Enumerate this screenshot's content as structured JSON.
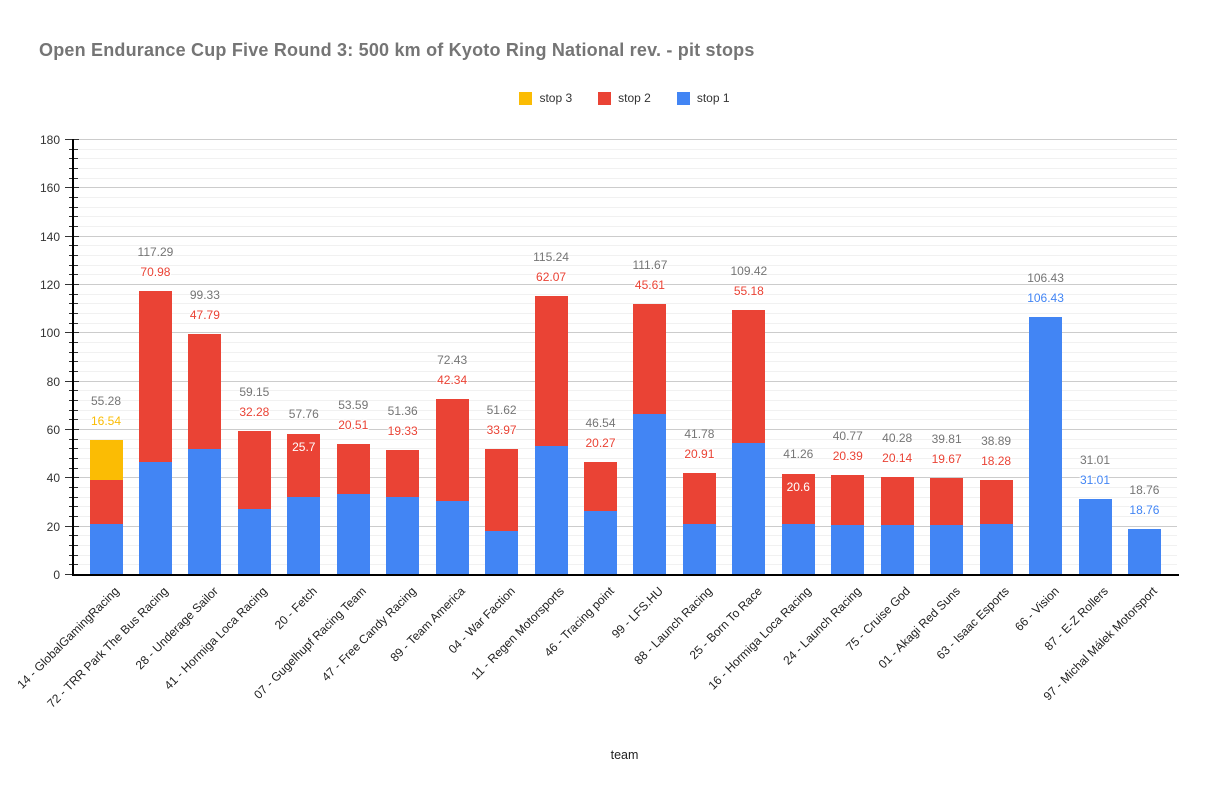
{
  "chart_data": {
    "type": "bar",
    "stacked": true,
    "title": "Open Endurance Cup Five Round 3: 500 km of Kyoto Ring National rev. - pit stops",
    "xlabel": "team",
    "ylabel": "",
    "ylim": [
      0,
      180
    ],
    "y_ticks": [
      0,
      20,
      40,
      60,
      80,
      100,
      120,
      140,
      160,
      180
    ],
    "y_minor_step": 4,
    "grid": true,
    "legend_position": "top",
    "legend": [
      {
        "label": "stop 3",
        "color": "#FBBC04"
      },
      {
        "label": "stop 2",
        "color": "#EA4335"
      },
      {
        "label": "stop 1",
        "color": "#4285F4"
      }
    ],
    "colors": {
      "stop1": "#4285F4",
      "stop2": "#EA4335",
      "stop3": "#FBBC04",
      "total_text": "#757575",
      "title_text": "#757575"
    },
    "categories": [
      "14 - GlobalGamingRacing",
      "72 - TRR Park The Bus Racing",
      "28 - Underage Sailor",
      "41 - Hormiga Loca Racing",
      "20 - Fetch",
      "07 - Gugelhupf Racing Team",
      "47 - Free Candy Racing",
      "89 - Team America",
      "04 - War Faction",
      "11 - Regen Motorsports",
      "46 - Tracing point",
      "99 - LFS.HU",
      "88 - Launch Racing",
      "25 - Born To Race",
      "16 - Hormiga Loca Racing",
      "24 - Launch Racing",
      "75 - Cruise God",
      "01 - Akagi Red Suns",
      "63 - Isaac Esports",
      "66 - Vision",
      "87 - E-Z Rollers",
      "97 - Michal Málek Motorsport"
    ],
    "series": [
      {
        "name": "stop 1",
        "color": "#4285F4",
        "values": [
          20.52,
          46.31,
          51.54,
          26.87,
          32.06,
          33.08,
          32.03,
          30.09,
          17.65,
          53.17,
          26.27,
          66.06,
          20.87,
          54.24,
          20.66,
          20.38,
          20.14,
          20.14,
          20.61,
          106.43,
          31.01,
          18.76
        ]
      },
      {
        "name": "stop 2",
        "color": "#EA4335",
        "values": [
          18.22,
          70.98,
          47.79,
          32.28,
          25.7,
          20.51,
          19.33,
          42.34,
          33.97,
          62.07,
          20.27,
          45.61,
          20.91,
          55.18,
          20.6,
          20.39,
          20.14,
          19.67,
          18.28,
          null,
          null,
          null
        ]
      },
      {
        "name": "stop 3",
        "color": "#FBBC04",
        "values": [
          16.54,
          null,
          null,
          null,
          null,
          null,
          null,
          null,
          null,
          null,
          null,
          null,
          null,
          null,
          null,
          null,
          null,
          null,
          null,
          null,
          null,
          null
        ]
      }
    ],
    "totals": [
      "55.28",
      "117.29",
      "99.33",
      "59.15",
      "57.76",
      "53.59",
      "51.36",
      "72.43",
      "51.62",
      "115.24",
      "46.54",
      "111.67",
      "41.78",
      "109.42",
      "41.26",
      "40.77",
      "40.28",
      "39.81",
      "38.89",
      "106.43",
      "31.01",
      "18.76"
    ],
    "inside_labels": [
      {
        "series": "stop 2",
        "category_index": 4
      },
      {
        "series": "stop 2",
        "category_index": 14
      }
    ]
  }
}
